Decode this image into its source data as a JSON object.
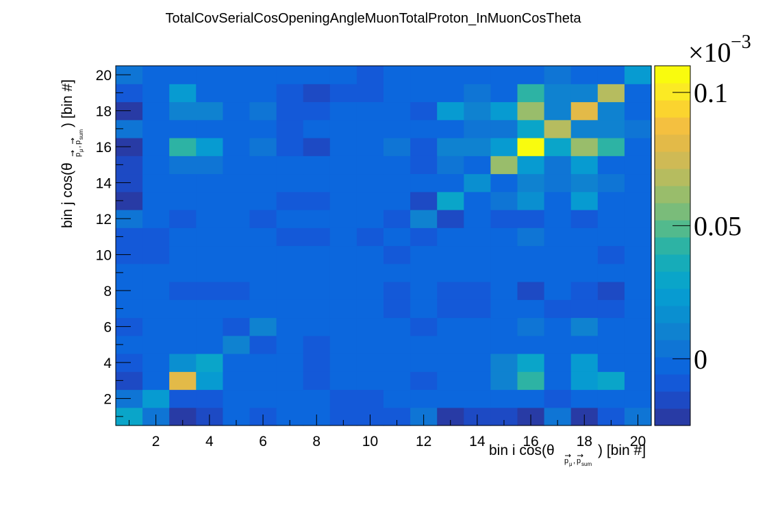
{
  "chart_data": {
    "type": "heatmap",
    "title": "TotalCovSerialCosOpeningAngleMuonTotalProton_InMuonCosTheta",
    "xlabel": {
      "prefix": "bin i cos(θ",
      "sub1": "p",
      "sub1s": "μ",
      "comma": ",",
      "sub2": "p",
      "sub2s": "sum",
      "suffix": ") [bin #]"
    },
    "ylabel": {
      "prefix": "bin j cos(θ",
      "sub1": "p",
      "sub1s": "μ",
      "comma": ",",
      "sub2": "p",
      "sub2s": "sum",
      "suffix": ") [bin #]"
    },
    "xlim": [
      0.5,
      20.5
    ],
    "ylim": [
      0.5,
      20.5
    ],
    "x_ticks": [
      "2",
      "4",
      "6",
      "8",
      "10",
      "12",
      "14",
      "16",
      "18",
      "20"
    ],
    "y_ticks": [
      "2",
      "4",
      "6",
      "8",
      "10",
      "12",
      "14",
      "16",
      "18",
      "20"
    ],
    "z_multiplier": {
      "base": "×10",
      "exponent": "−3"
    },
    "z_range": [
      -0.025,
      0.11
    ],
    "z_ticks": [
      {
        "value": 0,
        "label": "0"
      },
      {
        "value": 0.05,
        "label": "0.05"
      },
      {
        "value": 0.1,
        "label": "0.1"
      }
    ],
    "palette": [
      "#283ba5",
      "#1d4ac4",
      "#1459d8",
      "#0c67dd",
      "#0f75d5",
      "#0f82d0",
      "#0a8fd0",
      "#079bd1",
      "#0aa5c9",
      "#16acb9",
      "#2db3a4",
      "#52ba8d",
      "#7abc7a",
      "#99bd6b",
      "#b6bc5f",
      "#cfba55",
      "#e3ba48",
      "#f4c040",
      "#fbd42f",
      "#fbea24",
      "#f9fb0e"
    ],
    "matrix": [
      [
        0.03,
        0.005,
        -0.02,
        -0.015,
        -0.005,
        -0.01,
        -0.005,
        0.0,
        -0.01,
        -0.01,
        -0.01,
        0.005,
        -0.02,
        -0.015,
        -0.015,
        -0.025,
        0.005,
        -0.025,
        -0.01,
        0.005
      ],
      [
        0.005,
        0.025,
        -0.01,
        -0.01,
        -0.005,
        -0.005,
        -0.005,
        -0.005,
        -0.01,
        -0.01,
        -0.005,
        -0.005,
        -0.005,
        -0.005,
        -0.005,
        -0.005,
        -0.01,
        -0.005,
        -0.005,
        0.0
      ],
      [
        -0.015,
        -0.005,
        0.08,
        0.02,
        -0.005,
        0.0,
        -0.005,
        -0.01,
        -0.005,
        -0.005,
        0.0,
        -0.01,
        0.0,
        0.0,
        0.01,
        0.045,
        0.0,
        0.02,
        0.03,
        0.0
      ],
      [
        -0.01,
        -0.005,
        0.015,
        0.03,
        -0.005,
        0.0,
        -0.005,
        -0.01,
        -0.005,
        -0.005,
        -0.005,
        -0.005,
        0.0,
        0.0,
        0.01,
        0.03,
        0.0,
        0.02,
        0.0,
        -0.005
      ],
      [
        -0.005,
        -0.005,
        -0.005,
        -0.005,
        0.01,
        -0.01,
        -0.005,
        -0.01,
        -0.005,
        -0.005,
        -0.005,
        -0.005,
        -0.005,
        -0.005,
        0.0,
        -0.005,
        -0.005,
        -0.005,
        0.0,
        -0.005
      ],
      [
        -0.01,
        -0.005,
        0.0,
        0.0,
        -0.01,
        0.01,
        -0.005,
        -0.005,
        -0.005,
        -0.005,
        -0.005,
        -0.01,
        -0.005,
        -0.005,
        0.0,
        0.005,
        -0.005,
        0.01,
        0.0,
        -0.005
      ],
      [
        -0.005,
        -0.005,
        -0.005,
        -0.005,
        -0.005,
        -0.005,
        -0.005,
        0.0,
        -0.005,
        -0.005,
        -0.01,
        -0.005,
        -0.01,
        -0.01,
        -0.005,
        -0.005,
        -0.01,
        -0.01,
        -0.01,
        -0.005
      ],
      [
        0.0,
        -0.005,
        -0.01,
        -0.01,
        -0.01,
        -0.005,
        -0.005,
        0.0,
        -0.005,
        -0.005,
        -0.01,
        -0.005,
        -0.01,
        -0.01,
        -0.005,
        -0.015,
        -0.005,
        -0.01,
        -0.015,
        -0.005
      ],
      [
        -0.005,
        -0.005,
        -0.005,
        -0.005,
        -0.005,
        -0.005,
        -0.005,
        -0.005,
        -0.005,
        -0.005,
        -0.005,
        -0.005,
        -0.005,
        -0.005,
        -0.005,
        -0.005,
        -0.005,
        0.0,
        -0.005,
        -0.005
      ],
      [
        -0.01,
        -0.01,
        -0.005,
        -0.005,
        -0.005,
        -0.005,
        -0.005,
        -0.005,
        -0.005,
        -0.005,
        -0.01,
        -0.005,
        -0.005,
        -0.005,
        -0.005,
        -0.005,
        -0.005,
        -0.005,
        -0.01,
        -0.005
      ],
      [
        -0.01,
        -0.01,
        0.0,
        -0.005,
        -0.005,
        -0.005,
        -0.01,
        -0.01,
        -0.005,
        -0.01,
        0.0,
        -0.01,
        0.0,
        -0.005,
        -0.005,
        0.005,
        -0.005,
        0.0,
        -0.005,
        -0.005
      ],
      [
        0.005,
        -0.005,
        -0.01,
        -0.005,
        -0.005,
        -0.01,
        -0.005,
        -0.005,
        -0.005,
        -0.005,
        -0.01,
        0.01,
        -0.015,
        -0.005,
        -0.01,
        -0.01,
        0.0,
        -0.01,
        -0.005,
        -0.005
      ],
      [
        -0.02,
        -0.005,
        0.0,
        0.0,
        -0.005,
        -0.005,
        -0.01,
        -0.01,
        -0.005,
        -0.005,
        0.0,
        -0.015,
        0.03,
        0.0,
        0.005,
        0.015,
        0.0,
        0.025,
        0.0,
        -0.005
      ],
      [
        -0.015,
        -0.005,
        0.0,
        0.0,
        -0.005,
        -0.005,
        -0.005,
        -0.005,
        -0.005,
        -0.005,
        -0.005,
        -0.005,
        0.0,
        0.015,
        0.0,
        0.01,
        0.005,
        0.01,
        0.005,
        -0.005
      ],
      [
        -0.015,
        -0.005,
        0.005,
        0.005,
        0.0,
        -0.005,
        -0.005,
        -0.005,
        -0.005,
        -0.005,
        -0.005,
        -0.01,
        0.005,
        0.0,
        0.06,
        0.02,
        0.005,
        0.025,
        -0.005,
        -0.005
      ],
      [
        -0.025,
        -0.005,
        0.04,
        0.025,
        -0.005,
        0.005,
        -0.01,
        -0.015,
        -0.005,
        -0.005,
        0.005,
        -0.01,
        0.01,
        0.01,
        0.02,
        0.11,
        0.03,
        0.06,
        0.04,
        -0.005
      ],
      [
        0.005,
        0.0,
        0.0,
        0.0,
        -0.005,
        -0.005,
        -0.01,
        -0.005,
        -0.005,
        -0.005,
        -0.005,
        0.0,
        0.0,
        0.005,
        0.005,
        0.03,
        0.07,
        0.01,
        0.01,
        0.005
      ],
      [
        -0.025,
        -0.005,
        0.01,
        0.01,
        -0.005,
        0.005,
        -0.01,
        -0.01,
        0.0,
        -0.005,
        0.0,
        -0.01,
        0.02,
        0.01,
        0.02,
        0.06,
        0.01,
        0.08,
        0.01,
        -0.005
      ],
      [
        -0.01,
        -0.005,
        0.02,
        0.0,
        0.0,
        -0.005,
        -0.01,
        -0.015,
        -0.01,
        -0.01,
        -0.005,
        -0.005,
        0.0,
        0.005,
        -0.005,
        0.04,
        0.01,
        0.01,
        0.065,
        0.0
      ],
      [
        0.005,
        0.0,
        0.0,
        -0.005,
        -0.005,
        -0.005,
        -0.005,
        -0.005,
        -0.005,
        -0.01,
        -0.005,
        -0.005,
        -0.005,
        -0.005,
        -0.005,
        -0.005,
        0.005,
        -0.005,
        0.0,
        0.02
      ]
    ]
  }
}
